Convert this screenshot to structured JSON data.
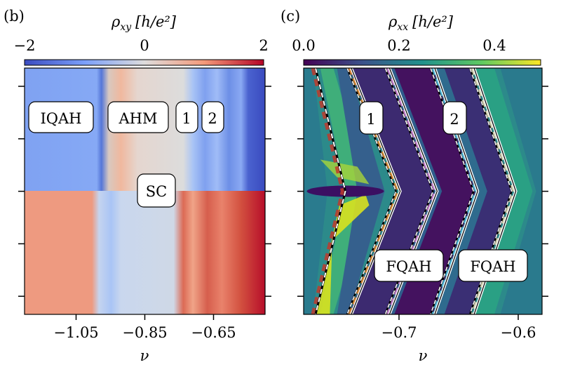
{
  "chart_data": [
    {
      "type": "heatmap",
      "panel_label": "(b)",
      "colorbar": {
        "label_symbol": "ρ",
        "label_sub": "xy",
        "label_unit": "[h/e²]",
        "range": [
          -2,
          2
        ],
        "ticks": [
          "−2",
          "0",
          "2"
        ],
        "colormap": "coolwarm"
      },
      "xlabel": "ν",
      "xlim": [
        -1.2,
        -0.5
      ],
      "xticks": [
        -1.05,
        -0.85,
        -0.65
      ],
      "xtick_labels": [
        "−1.05",
        "−0.85",
        "−0.65"
      ],
      "ytick_count": 5,
      "annotations": [
        "IQAH",
        "AHM",
        "1",
        "2",
        "SC"
      ]
    },
    {
      "type": "heatmap",
      "panel_label": "(c)",
      "colorbar": {
        "label_symbol": "ρ",
        "label_sub": "xx",
        "label_unit": "[h/e²]",
        "range": [
          0.0,
          0.5
        ],
        "ticks": [
          "0.0",
          "0.2",
          "0.4"
        ],
        "colormap": "viridis"
      },
      "xlabel": "ν",
      "xlim": [
        -0.78,
        -0.58
      ],
      "xticks": [
        -0.7,
        -0.6
      ],
      "xtick_labels": [
        "−0.7",
        "−0.6"
      ],
      "ytick_count": 5,
      "annotations": [
        "1",
        "2",
        "FQAH",
        "FQAH"
      ],
      "zigzag_lines": [
        {
          "style": "dashed",
          "nu_edge": -0.77,
          "nu_center": -0.745,
          "marker_color": "#c0392b"
        },
        {
          "style": "solid",
          "nu_edge": -0.74,
          "nu_center": -0.699,
          "marker_color": "#f08a24"
        },
        {
          "style": "solid",
          "nu_edge": -0.708,
          "nu_center": -0.668,
          "marker_color": "#d67fd0"
        },
        {
          "style": "solid",
          "nu_edge": -0.67,
          "nu_center": -0.634,
          "marker_color": "#4cc3e0"
        },
        {
          "style": "solid",
          "nu_edge": -0.637,
          "nu_center": -0.602,
          "marker_color": "#f2dfb8"
        }
      ]
    }
  ]
}
